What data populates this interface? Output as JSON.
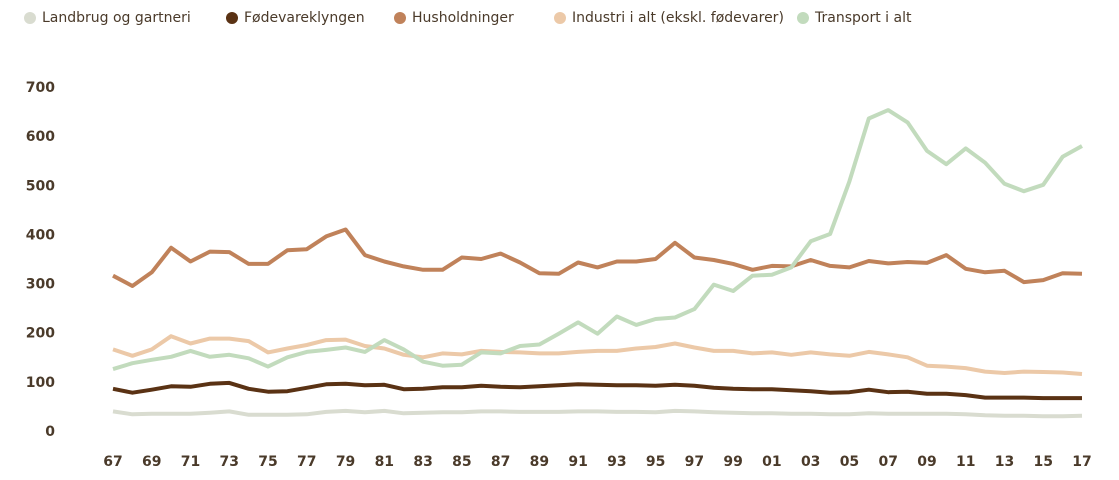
{
  "chart_data": {
    "type": "line",
    "categories": [
      "67",
      null,
      "69",
      null,
      "71",
      null,
      "73",
      null,
      "75",
      null,
      "77",
      null,
      "79",
      null,
      "81",
      null,
      "83",
      null,
      "85",
      null,
      "87",
      null,
      "89",
      null,
      "91",
      null,
      "93",
      null,
      "95",
      null,
      "97",
      null,
      "99",
      null,
      "01",
      null,
      "03",
      null,
      "05",
      null,
      "07",
      null,
      "09",
      null,
      "11",
      null,
      "13",
      null,
      "15",
      null,
      "17"
    ],
    "series": [
      {
        "name": "Landbrug og gartneri",
        "color": "#d9dcd0",
        "values": [
          42,
          36,
          37,
          37,
          37,
          39,
          42,
          35,
          35,
          35,
          36,
          41,
          43,
          40,
          43,
          38,
          39,
          40,
          40,
          42,
          42,
          41,
          41,
          41,
          42,
          42,
          41,
          41,
          40,
          43,
          42,
          40,
          39,
          38,
          38,
          37,
          37,
          36,
          36,
          38,
          37,
          37,
          37,
          37,
          36,
          34,
          33,
          33,
          32,
          32,
          33
        ]
      },
      {
        "name": "Fødevareklyngen",
        "color": "#5a3214",
        "values": [
          88,
          80,
          86,
          93,
          92,
          98,
          100,
          88,
          82,
          83,
          90,
          97,
          98,
          95,
          96,
          87,
          88,
          91,
          91,
          94,
          92,
          91,
          93,
          95,
          97,
          96,
          95,
          95,
          94,
          96,
          94,
          90,
          88,
          87,
          87,
          85,
          83,
          80,
          81,
          86,
          81,
          82,
          78,
          78,
          75,
          70,
          70,
          70,
          69,
          69,
          69
        ]
      },
      {
        "name": "Husholdninger",
        "color": "#c0825a",
        "values": [
          318,
          297,
          325,
          375,
          347,
          367,
          366,
          342,
          342,
          370,
          372,
          398,
          412,
          360,
          347,
          337,
          330,
          330,
          355,
          352,
          363,
          345,
          323,
          322,
          345,
          335,
          347,
          347,
          352,
          385,
          355,
          350,
          342,
          330,
          338,
          337,
          350,
          338,
          335,
          348,
          343,
          346,
          344,
          360,
          332,
          325,
          328,
          305,
          309,
          323,
          322
        ]
      },
      {
        "name": "Industri i alt (ekskl. fødevarer)",
        "color": "#ecc9a8",
        "values": [
          168,
          155,
          168,
          195,
          180,
          190,
          190,
          185,
          162,
          170,
          177,
          187,
          188,
          175,
          170,
          157,
          152,
          160,
          158,
          165,
          163,
          162,
          160,
          160,
          163,
          165,
          165,
          170,
          173,
          180,
          172,
          165,
          165,
          160,
          162,
          157,
          162,
          158,
          155,
          163,
          158,
          152,
          135,
          133,
          130,
          123,
          120,
          123,
          122,
          121,
          118
        ]
      },
      {
        "name": "Transport i alt",
        "color": "#c2dbbd",
        "values": [
          128,
          140,
          147,
          153,
          165,
          153,
          157,
          150,
          133,
          152,
          163,
          167,
          172,
          163,
          187,
          168,
          143,
          135,
          137,
          162,
          160,
          175,
          178,
          200,
          223,
          200,
          235,
          218,
          230,
          233,
          250,
          300,
          287,
          318,
          320,
          335,
          388,
          403,
          510,
          638,
          655,
          630,
          572,
          545,
          577,
          548,
          505,
          490,
          503,
          560,
          582
        ]
      }
    ],
    "ylim": [
      0,
      700
    ],
    "yticks": [
      0,
      100,
      200,
      300,
      400,
      500,
      600,
      700
    ],
    "grid": false,
    "legend": "top"
  }
}
